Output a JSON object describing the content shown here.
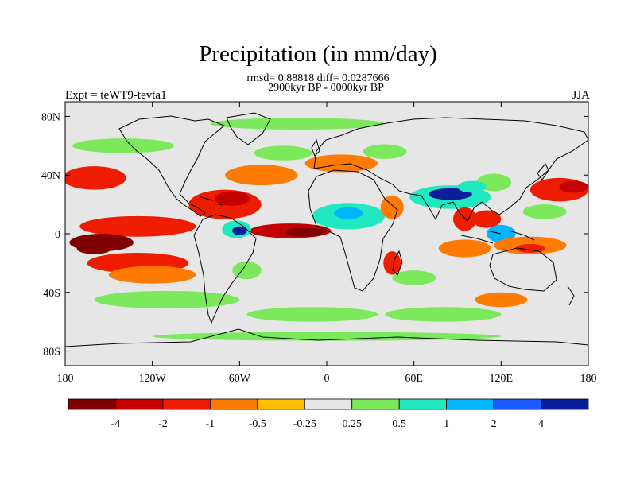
{
  "title": "Precipitation (in mm/day)",
  "stats_line": "rmsd= 0.88818 diff= 0.0287666",
  "period_line": "2900kyr BP - 0000kyr BP",
  "experiment": "Expt = teWT9-tevta1",
  "season": "JJA",
  "axes": {
    "lat_ticks": [
      {
        "label": "80N",
        "lat": 80
      },
      {
        "label": "40N",
        "lat": 40
      },
      {
        "label": "0",
        "lat": 0
      },
      {
        "label": "40S",
        "lat": -40
      },
      {
        "label": "80S",
        "lat": -80
      }
    ],
    "lon_ticks": [
      {
        "label": "180",
        "lon": -180
      },
      {
        "label": "120W",
        "lon": -120
      },
      {
        "label": "60W",
        "lon": -60
      },
      {
        "label": "0",
        "lon": 0
      },
      {
        "label": "60E",
        "lon": 60
      },
      {
        "label": "120E",
        "lon": 120
      },
      {
        "label": "180",
        "lon": 180
      }
    ],
    "lon_range": [
      -180,
      180
    ],
    "lat_range": [
      -90,
      90
    ]
  },
  "colorbar": {
    "colors": [
      "#800000",
      "#c40000",
      "#ee1c00",
      "#ff7a00",
      "#ffbf00",
      "#e6e6e6",
      "#7ce85c",
      "#22e8c0",
      "#00b6ff",
      "#1a5cff",
      "#0a1e9a"
    ],
    "labels": [
      "-4",
      "-2",
      "-1",
      "-0.5",
      "-0.25",
      "0.25",
      "0.5",
      "1",
      "2",
      "4"
    ]
  },
  "map": {
    "background": "#e6e6e6",
    "anomaly_features": [
      {
        "name": "north-pacific-dry",
        "lon": -160,
        "lat": 38,
        "rx": 22,
        "ry": 8,
        "level": "-1"
      },
      {
        "name": "east-pacific-itcz-dry",
        "lon": -130,
        "lat": 5,
        "rx": 40,
        "ry": 7,
        "level": "-1"
      },
      {
        "name": "central-pacific-dry-core",
        "lon": -155,
        "lat": -6,
        "rx": 22,
        "ry": 6,
        "level": "-4"
      },
      {
        "name": "central-pacific-dry-core2",
        "lon": -160,
        "lat": -10,
        "rx": 12,
        "ry": 4,
        "level": "-4"
      },
      {
        "name": "spcz-dry-band",
        "lon": -130,
        "lat": -20,
        "rx": 35,
        "ry": 7,
        "level": "-1"
      },
      {
        "name": "spcz-dry-band-weak",
        "lon": -120,
        "lat": -28,
        "rx": 30,
        "ry": 6,
        "level": "-0.5"
      },
      {
        "name": "caribbean-dry",
        "lon": -70,
        "lat": 20,
        "rx": 25,
        "ry": 10,
        "level": "-1"
      },
      {
        "name": "caribbean-dry-core",
        "lon": -65,
        "lat": 24,
        "rx": 12,
        "ry": 5,
        "level": "-2"
      },
      {
        "name": "north-atlantic-dry",
        "lon": -45,
        "lat": 40,
        "rx": 25,
        "ry": 7,
        "level": "-0.5"
      },
      {
        "name": "atlantic-itcz-dry",
        "lon": -25,
        "lat": 2,
        "rx": 28,
        "ry": 5,
        "level": "-2"
      },
      {
        "name": "atlantic-itcz-core",
        "lon": -15,
        "lat": 1,
        "rx": 14,
        "ry": 3,
        "level": "-4"
      },
      {
        "name": "amazon-wet",
        "lon": -62,
        "lat": 3,
        "rx": 10,
        "ry": 6,
        "level": "1"
      },
      {
        "name": "amazon-wet-core",
        "lon": -60,
        "lat": 2,
        "rx": 5,
        "ry": 3,
        "level": "4"
      },
      {
        "name": "west-africa-wet",
        "lon": 15,
        "lat": 12,
        "rx": 25,
        "ry": 9,
        "level": "1"
      },
      {
        "name": "west-africa-wet-core",
        "lon": 15,
        "lat": 14,
        "rx": 10,
        "ry": 4,
        "level": "2"
      },
      {
        "name": "east-africa-dry",
        "lon": 45,
        "lat": 18,
        "rx": 8,
        "ry": 8,
        "level": "-0.5"
      },
      {
        "name": "mediterranean-dry",
        "lon": 10,
        "lat": 48,
        "rx": 25,
        "ry": 6,
        "level": "-0.5"
      },
      {
        "name": "europe-wet",
        "lon": 40,
        "lat": 56,
        "rx": 15,
        "ry": 5,
        "level": "0.5"
      },
      {
        "name": "madagascar-dry",
        "lon": 45,
        "lat": -20,
        "rx": 6,
        "ry": 8,
        "level": "-1"
      },
      {
        "name": "india-wet",
        "lon": 85,
        "lat": 25,
        "rx": 28,
        "ry": 8,
        "level": "1"
      },
      {
        "name": "india-wet-core",
        "lon": 85,
        "lat": 27,
        "rx": 15,
        "ry": 4,
        "level": "4"
      },
      {
        "name": "bay-of-bengal-dry",
        "lon": 95,
        "lat": 10,
        "rx": 8,
        "ry": 8,
        "level": "-1"
      },
      {
        "name": "south-china-sea-dry",
        "lon": 110,
        "lat": 10,
        "rx": 10,
        "ry": 6,
        "level": "-1"
      },
      {
        "name": "maritime-continent-wet",
        "lon": 120,
        "lat": 0,
        "rx": 10,
        "ry": 6,
        "level": "2"
      },
      {
        "name": "indian-ocean-dry",
        "lon": 95,
        "lat": -10,
        "rx": 18,
        "ry": 6,
        "level": "-0.5"
      },
      {
        "name": "west-pacific-dry",
        "lon": 140,
        "lat": -8,
        "rx": 25,
        "ry": 6,
        "level": "-0.5"
      },
      {
        "name": "west-pacific-dry-core",
        "lon": 140,
        "lat": -10,
        "rx": 10,
        "ry": 3,
        "level": "-1"
      },
      {
        "name": "nw-pacific-dry",
        "lon": 160,
        "lat": 30,
        "rx": 20,
        "ry": 8,
        "level": "-1"
      },
      {
        "name": "nw-pacific-dry-core",
        "lon": 170,
        "lat": 32,
        "rx": 10,
        "ry": 4,
        "level": "-2"
      },
      {
        "name": "southern-ocean-dry",
        "lon": 120,
        "lat": -45,
        "rx": 18,
        "ry": 5,
        "level": "-0.5"
      },
      {
        "name": "south-pacific-wet",
        "lon": -110,
        "lat": -45,
        "rx": 50,
        "ry": 6,
        "level": "0.5"
      },
      {
        "name": "south-atlantic-wet",
        "lon": -10,
        "lat": -55,
        "rx": 45,
        "ry": 5,
        "level": "0.5"
      },
      {
        "name": "indian-southern-wet",
        "lon": 80,
        "lat": -55,
        "rx": 40,
        "ry": 5,
        "level": "0.5"
      },
      {
        "name": "north-pacific-wet",
        "lon": -140,
        "lat": 60,
        "rx": 35,
        "ry": 5,
        "level": "0.5"
      },
      {
        "name": "arctic-wet",
        "lon": -20,
        "lat": 75,
        "rx": 60,
        "ry": 4,
        "level": "0.5"
      },
      {
        "name": "north-atlantic-wet",
        "lon": -30,
        "lat": 55,
        "rx": 20,
        "ry": 5,
        "level": "0.5"
      },
      {
        "name": "antarctic-coast-wet",
        "lon": 0,
        "lat": -70,
        "rx": 120,
        "ry": 3,
        "level": "0.5"
      },
      {
        "name": "subtropical-south-indian-wet",
        "lon": 60,
        "lat": -30,
        "rx": 15,
        "ry": 5,
        "level": "0.5"
      },
      {
        "name": "south-america-wet",
        "lon": -55,
        "lat": -25,
        "rx": 10,
        "ry": 6,
        "level": "0.5"
      },
      {
        "name": "east-asia-wet",
        "lon": 115,
        "lat": 35,
        "rx": 12,
        "ry": 6,
        "level": "0.5"
      },
      {
        "name": "west-pacific-wet",
        "lon": 150,
        "lat": 15,
        "rx": 15,
        "ry": 5,
        "level": "0.5"
      },
      {
        "name": "tibet-wet",
        "lon": 100,
        "lat": 32,
        "rx": 10,
        "ry": 4,
        "level": "1"
      }
    ]
  }
}
